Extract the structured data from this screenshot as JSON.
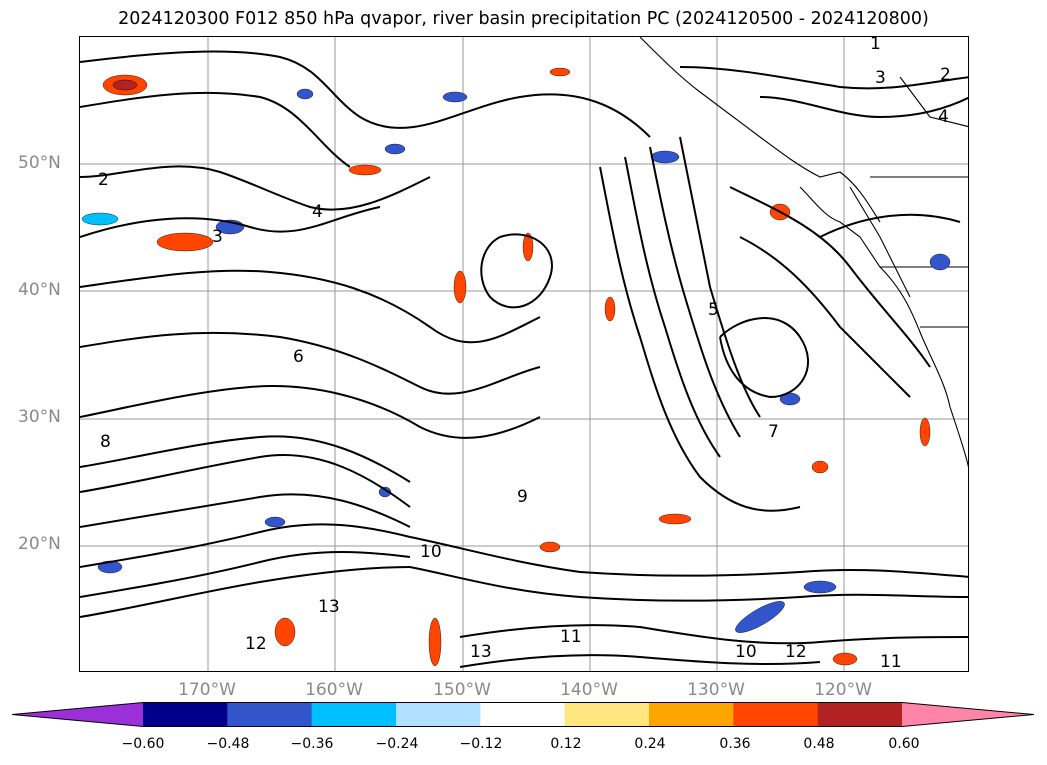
{
  "title": "2024120300 F012 850 hPa qvapor, river basin precipitation PC (2024120500 - 2024120800)",
  "lat_labels": [
    "50°N",
    "40°N",
    "30°N",
    "20°N"
  ],
  "lon_labels": [
    "170°W",
    "160°W",
    "150°W",
    "140°W",
    "130°W",
    "120°W"
  ],
  "colorbar": {
    "ticks": [
      "−0.60",
      "−0.48",
      "−0.36",
      "−0.24",
      "−0.12",
      "0.12",
      "0.24",
      "0.36",
      "0.48",
      "0.60"
    ],
    "colors": [
      "#9b30d9",
      "#00008b",
      "#3355cc",
      "#00bfff",
      "#b0e0ff",
      "#ffffff",
      "#ffe680",
      "#ffa500",
      "#ff4500",
      "#b22222",
      "#ff85a8"
    ]
  },
  "contour_labels": [
    "1",
    "2",
    "3",
    "4",
    "2",
    "3",
    "4",
    "5",
    "6",
    "7",
    "8",
    "9",
    "10",
    "11",
    "12",
    "13",
    "10",
    "11",
    "12",
    "13"
  ],
  "colors": {
    "contour": "#000000",
    "grid": "#999999",
    "coast": "#000000"
  }
}
